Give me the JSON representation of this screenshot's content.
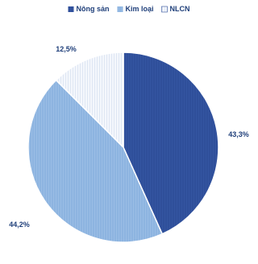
{
  "chart_data": {
    "type": "pie",
    "title": "",
    "series": [
      {
        "name": "Nông sản",
        "value": 43.3,
        "label": "43,3%"
      },
      {
        "name": "Kim loại",
        "value": 44.2,
        "label": "44,2%"
      },
      {
        "name": "NLCN",
        "value": 12.5,
        "label": "12,5%"
      }
    ],
    "colors": {
      "Nông sản": "#2f4f9a",
      "Kim loại": "#8db4e0",
      "NLCN": "#e9eef8",
      "edge": "#ffffff",
      "text": "#1f3f7a"
    },
    "start_angle": "12 o'clock",
    "direction": "clockwise",
    "legend_position": "top-center"
  }
}
